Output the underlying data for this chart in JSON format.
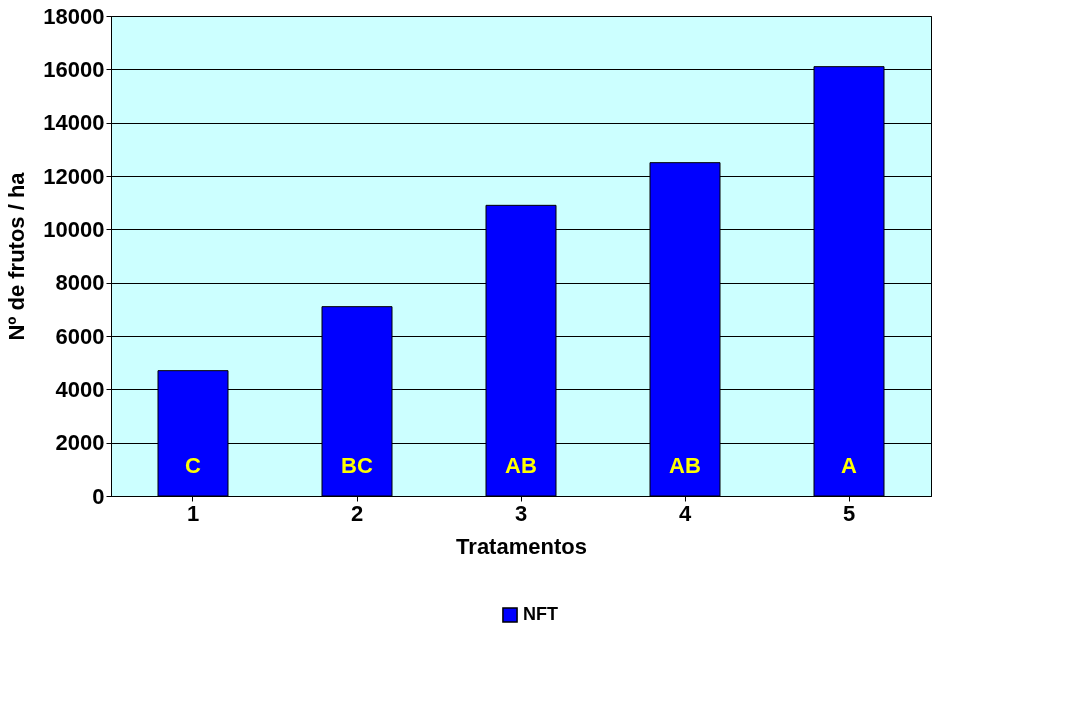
{
  "chart_data": {
    "type": "bar",
    "xlabel": "Tratamentos",
    "ylabel": "Nº de frutos / ha",
    "categories": [
      "1",
      "2",
      "3",
      "4",
      "5"
    ],
    "series": [
      {
        "name": "NFT",
        "color": "#0000ff",
        "values": [
          4700,
          7100,
          10900,
          12500,
          16100
        ]
      }
    ],
    "ylim": [
      0,
      18000
    ],
    "yticks": [
      0,
      2000,
      4000,
      6000,
      8000,
      10000,
      12000,
      14000,
      16000,
      18000
    ],
    "grid": "y",
    "legend": "bottom",
    "annotations": [
      "C",
      "BC",
      "AB",
      "AB",
      "A"
    ]
  }
}
